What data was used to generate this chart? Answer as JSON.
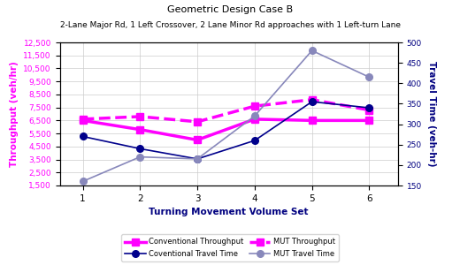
{
  "title_line1": "Geometric Design Case B",
  "title_line2": "2-Lane Major Rd, 1 Left Crossover, 2 Lane Minor Rd approaches with 1 Left-turn Lane",
  "xlabel": "Turning Movement Volume Set",
  "ylabel_left": "Throughput (veh/hr)",
  "ylabel_right": "Travel Time (veh-hr)",
  "x": [
    1,
    2,
    3,
    4,
    5,
    6
  ],
  "conv_throughput": [
    6500,
    5800,
    5000,
    6600,
    6500,
    6500
  ],
  "mut_throughput": [
    6600,
    6800,
    6400,
    7600,
    8100,
    7300
  ],
  "conv_travel_time": [
    270,
    240,
    215,
    260,
    355,
    340
  ],
  "mut_travel_time": [
    160,
    220,
    215,
    320,
    480,
    415
  ],
  "ylim_left": [
    1500,
    12500
  ],
  "ylim_right": [
    150,
    500
  ],
  "yticks_left": [
    1500,
    2500,
    3500,
    4500,
    5500,
    6500,
    7500,
    8500,
    9500,
    10500,
    11500,
    12500
  ],
  "yticks_right": [
    150,
    200,
    250,
    300,
    350,
    400,
    450,
    500
  ],
  "conv_throughput_color": "#FF00FF",
  "mut_throughput_color": "#FF00FF",
  "conv_travel_color": "#00008B",
  "mut_travel_color": "#8888BB",
  "background_color": "#FFFFFF",
  "grid_color": "#CCCCCC",
  "legend_labels": [
    "Conventional Throughput",
    "MUT Throughput",
    "Coventional Travel Time",
    "MUT Travel Time"
  ]
}
